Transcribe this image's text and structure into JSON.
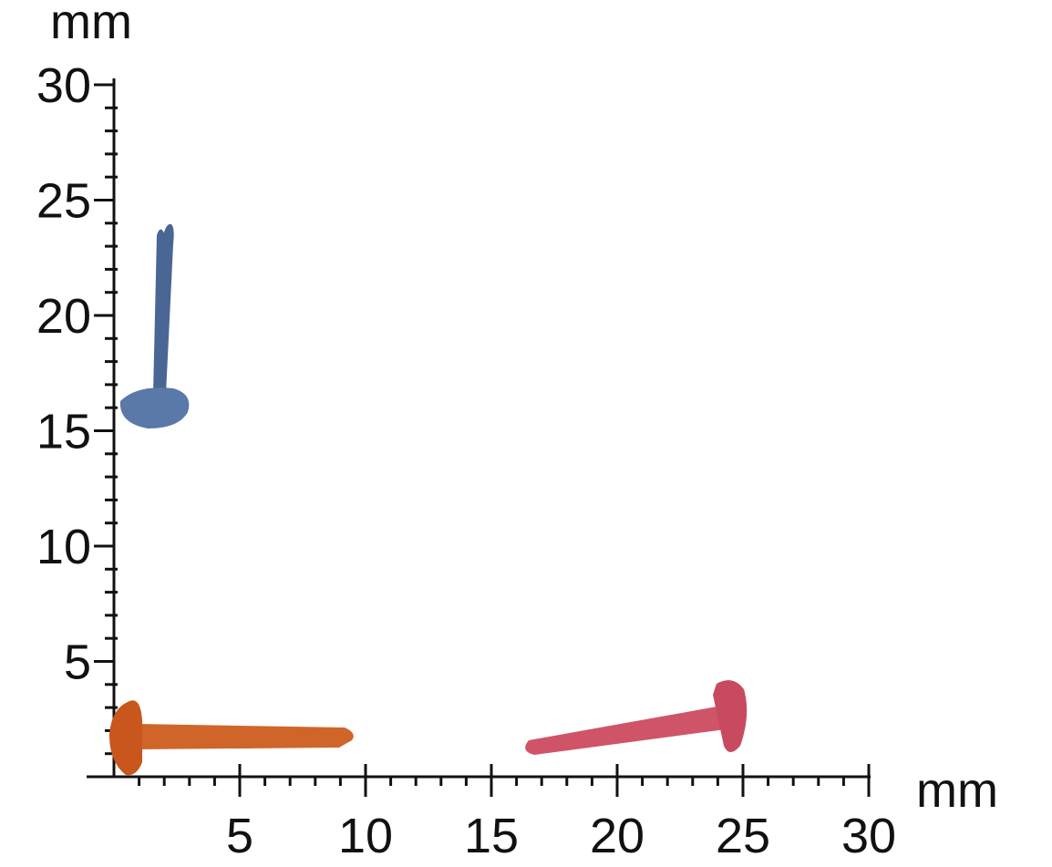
{
  "y_axis": {
    "unit": "mm",
    "labels": [
      "5",
      "10",
      "15",
      "20",
      "25",
      "30"
    ]
  },
  "x_axis": {
    "unit": "mm",
    "labels": [
      "5",
      "10",
      "15",
      "20",
      "25",
      "30"
    ]
  }
}
